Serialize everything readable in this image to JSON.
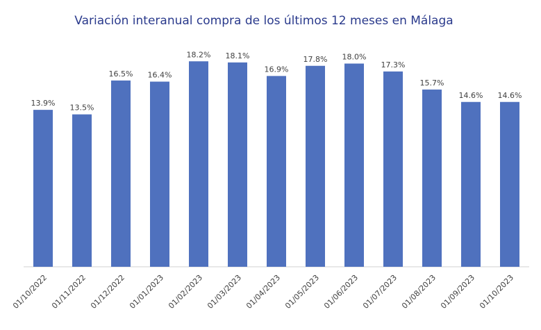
{
  "chart_data": {
    "type": "bar",
    "title": "Variación interanual compra de los últimos 12 meses en Málaga",
    "categories": [
      "01/10/2022",
      "01/11/2022",
      "01/12/2022",
      "01/01/2023",
      "01/02/2023",
      "01/03/2023",
      "01/04/2023",
      "01/05/2023",
      "01/06/2023",
      "01/07/2023",
      "01/08/2023",
      "01/09/2023",
      "01/10/2023"
    ],
    "values": [
      13.9,
      13.5,
      16.5,
      16.4,
      18.2,
      18.1,
      16.9,
      17.8,
      18.0,
      17.3,
      15.7,
      14.6,
      14.6
    ],
    "value_labels": [
      "13.9%",
      "13.5%",
      "16.5%",
      "16.4%",
      "18.2%",
      "18.1%",
      "16.9%",
      "17.8%",
      "18.0%",
      "17.3%",
      "15.7%",
      "14.6%",
      "14.6%"
    ],
    "color": "#4f71be",
    "ylim": [
      0,
      20
    ]
  }
}
